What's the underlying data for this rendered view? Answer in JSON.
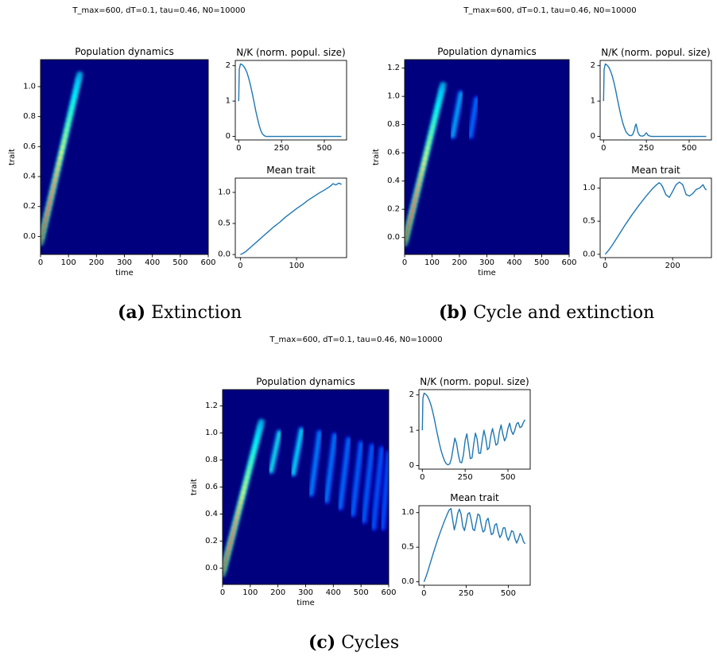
{
  "colors": {
    "line": "#1f77b4",
    "heat_background": "#00007f",
    "axis": "#000000",
    "colormap": "jet"
  },
  "panels": [
    {
      "id": "a",
      "suptitle": "T_max=600, dT=0.1, tau=0.46, N0=10000",
      "caption": {
        "label": "(a)",
        "text": "Extinction"
      }
    },
    {
      "id": "b",
      "suptitle": "T_max=600, dT=0.1, tau=0.46, N0=10000",
      "caption": {
        "label": "(b)",
        "text": "Cycle and extinction"
      }
    },
    {
      "id": "c",
      "suptitle": "T_max=600, dT=0.1, tau=0.46, N0=10000",
      "caption": {
        "label": "(c)",
        "text": "Cycles"
      }
    }
  ],
  "chart_data": [
    {
      "panel": "a",
      "type": "heatmap",
      "title": "Population dynamics",
      "xlabel": "time",
      "ylabel": "trait",
      "xlim": [
        0,
        600
      ],
      "ylim": [
        -0.12,
        1.18
      ],
      "xticks": [
        "0",
        "100",
        "200",
        "300",
        "400",
        "500",
        "600"
      ],
      "yticks": [
        "0.0",
        "0.2",
        "0.4",
        "0.6",
        "0.8",
        "1.0"
      ],
      "ridges": [
        {
          "t0": 0,
          "y0": -0.04,
          "t1": 140,
          "y1": 1.08,
          "peak": 1.0
        }
      ]
    },
    {
      "panel": "a",
      "type": "line",
      "title": "N/K (norm. popul. size)",
      "xlim": [
        -20,
        630
      ],
      "ylim": [
        -0.1,
        2.15
      ],
      "xticks": [
        "0",
        "250",
        "500"
      ],
      "yticks": [
        "0",
        "1",
        "2"
      ],
      "series": [
        {
          "x": [
            0,
            3,
            10,
            20,
            30,
            40,
            50,
            60,
            70,
            80,
            90,
            100,
            110,
            120,
            130,
            140,
            150,
            160,
            170,
            200,
            300,
            400,
            500,
            600
          ],
          "y": [
            1.0,
            1.9,
            2.05,
            2.03,
            1.98,
            1.9,
            1.78,
            1.62,
            1.42,
            1.2,
            0.96,
            0.72,
            0.5,
            0.3,
            0.15,
            0.06,
            0.02,
            0.0,
            0.0,
            0.0,
            0.0,
            0.0,
            0.0,
            0.0
          ]
        }
      ]
    },
    {
      "panel": "a",
      "type": "line",
      "title": "Mean trait",
      "xlim": [
        -9,
        189
      ],
      "ylim": [
        -0.05,
        1.23
      ],
      "xticks": [
        "0",
        "100"
      ],
      "yticks": [
        "0.0",
        "0.5",
        "1.0"
      ],
      "series": [
        {
          "x": [
            0,
            5,
            10,
            20,
            30,
            40,
            50,
            60,
            70,
            80,
            90,
            100,
            110,
            120,
            130,
            140,
            150,
            160,
            165,
            170,
            175,
            180
          ],
          "y": [
            0.0,
            0.02,
            0.05,
            0.13,
            0.21,
            0.29,
            0.37,
            0.45,
            0.52,
            0.6,
            0.67,
            0.74,
            0.8,
            0.87,
            0.93,
            0.99,
            1.04,
            1.1,
            1.14,
            1.12,
            1.15,
            1.13
          ]
        }
      ]
    },
    {
      "panel": "b",
      "type": "heatmap",
      "title": "Population dynamics",
      "xlabel": "time",
      "ylabel": "trait",
      "xlim": [
        0,
        600
      ],
      "ylim": [
        -0.12,
        1.26
      ],
      "xticks": [
        "0",
        "100",
        "200",
        "300",
        "400",
        "500",
        "600"
      ],
      "yticks": [
        "0.0",
        "0.2",
        "0.4",
        "0.6",
        "0.8",
        "1.0",
        "1.2"
      ],
      "ridges": [
        {
          "t0": 0,
          "y0": -0.04,
          "t1": 140,
          "y1": 1.08,
          "peak": 1.0
        },
        {
          "t0": 175,
          "y0": 0.72,
          "t1": 205,
          "y1": 1.02,
          "peak": 0.3
        },
        {
          "t0": 240,
          "y0": 0.72,
          "t1": 262,
          "y1": 0.98,
          "peak": 0.18
        }
      ]
    },
    {
      "panel": "b",
      "type": "line",
      "title": "N/K (norm. popul. size)",
      "xlim": [
        -20,
        630
      ],
      "ylim": [
        -0.1,
        2.15
      ],
      "xticks": [
        "0",
        "250",
        "500"
      ],
      "yticks": [
        "0",
        "1",
        "2"
      ],
      "series": [
        {
          "x": [
            0,
            3,
            10,
            20,
            30,
            40,
            50,
            60,
            70,
            80,
            90,
            100,
            110,
            120,
            130,
            140,
            150,
            160,
            170,
            180,
            185,
            190,
            195,
            200,
            210,
            220,
            230,
            240,
            245,
            250,
            255,
            260,
            270,
            280,
            300,
            400,
            500,
            600
          ],
          "y": [
            1.0,
            1.9,
            2.05,
            2.02,
            1.96,
            1.86,
            1.72,
            1.54,
            1.32,
            1.08,
            0.84,
            0.62,
            0.42,
            0.26,
            0.14,
            0.07,
            0.03,
            0.02,
            0.05,
            0.18,
            0.3,
            0.35,
            0.25,
            0.12,
            0.03,
            0.01,
            0.01,
            0.04,
            0.08,
            0.1,
            0.07,
            0.03,
            0.01,
            0.0,
            0.0,
            0.0,
            0.0,
            0.0
          ]
        }
      ]
    },
    {
      "panel": "b",
      "type": "line",
      "title": "Mean trait",
      "xlim": [
        -15,
        315
      ],
      "ylim": [
        -0.05,
        1.15
      ],
      "xticks": [
        "0",
        "200"
      ],
      "yticks": [
        "0.0",
        "0.5",
        "1.0"
      ],
      "series": [
        {
          "x": [
            0,
            10,
            20,
            40,
            60,
            80,
            100,
            120,
            140,
            150,
            160,
            165,
            170,
            180,
            190,
            200,
            210,
            220,
            230,
            240,
            250,
            260,
            270,
            280,
            290,
            295,
            300
          ],
          "y": [
            0.0,
            0.06,
            0.13,
            0.29,
            0.45,
            0.6,
            0.74,
            0.87,
            0.99,
            1.04,
            1.08,
            1.06,
            1.02,
            0.9,
            0.86,
            0.95,
            1.05,
            1.09,
            1.05,
            0.9,
            0.88,
            0.92,
            0.98,
            1.0,
            1.05,
            1.0,
            0.97
          ]
        }
      ]
    },
    {
      "panel": "c",
      "type": "heatmap",
      "title": "Population dynamics",
      "xlabel": "time",
      "ylabel": "trait",
      "xlim": [
        0,
        600
      ],
      "ylim": [
        -0.12,
        1.32
      ],
      "xticks": [
        "0",
        "100",
        "200",
        "300",
        "400",
        "500",
        "600"
      ],
      "yticks": [
        "0.0",
        "0.2",
        "0.4",
        "0.6",
        "0.8",
        "1.0",
        "1.2"
      ],
      "ridges": [
        {
          "t0": 0,
          "y0": -0.04,
          "t1": 140,
          "y1": 1.08,
          "peak": 1.0
        },
        {
          "t0": 175,
          "y0": 0.72,
          "t1": 205,
          "y1": 1.0,
          "peak": 0.45
        },
        {
          "t0": 255,
          "y0": 0.7,
          "t1": 285,
          "y1": 1.02,
          "peak": 0.4
        },
        {
          "t0": 320,
          "y0": 0.55,
          "t1": 350,
          "y1": 1.0,
          "peak": 0.22
        },
        {
          "t0": 375,
          "y0": 0.5,
          "t1": 405,
          "y1": 0.98,
          "peak": 0.2
        },
        {
          "t0": 425,
          "y0": 0.45,
          "t1": 455,
          "y1": 0.95,
          "peak": 0.18
        },
        {
          "t0": 470,
          "y0": 0.4,
          "t1": 500,
          "y1": 0.92,
          "peak": 0.16
        },
        {
          "t0": 510,
          "y0": 0.35,
          "t1": 540,
          "y1": 0.9,
          "peak": 0.15
        },
        {
          "t0": 545,
          "y0": 0.3,
          "t1": 575,
          "y1": 0.88,
          "peak": 0.13
        },
        {
          "t0": 578,
          "y0": 0.3,
          "t1": 600,
          "y1": 0.85,
          "peak": 0.12
        }
      ]
    },
    {
      "panel": "c",
      "type": "line",
      "title": "N/K (norm. popul. size)",
      "xlim": [
        -20,
        630
      ],
      "ylim": [
        -0.1,
        2.15
      ],
      "xticks": [
        "0",
        "250",
        "500"
      ],
      "yticks": [
        "0",
        "1",
        "2"
      ],
      "series": [
        {
          "x": [
            0,
            3,
            10,
            20,
            30,
            40,
            50,
            60,
            70,
            80,
            90,
            100,
            110,
            120,
            130,
            140,
            150,
            160,
            170,
            180,
            190,
            200,
            210,
            220,
            230,
            240,
            250,
            260,
            270,
            280,
            290,
            300,
            310,
            320,
            330,
            340,
            350,
            360,
            370,
            380,
            390,
            400,
            410,
            420,
            430,
            440,
            450,
            460,
            470,
            480,
            490,
            500,
            510,
            520,
            530,
            540,
            550,
            560,
            570,
            580,
            590,
            600
          ],
          "y": [
            1.0,
            1.9,
            2.05,
            2.02,
            1.96,
            1.86,
            1.72,
            1.54,
            1.32,
            1.08,
            0.84,
            0.62,
            0.42,
            0.26,
            0.13,
            0.05,
            0.02,
            0.05,
            0.2,
            0.5,
            0.78,
            0.62,
            0.32,
            0.1,
            0.08,
            0.3,
            0.72,
            0.9,
            0.55,
            0.2,
            0.22,
            0.6,
            0.92,
            0.75,
            0.35,
            0.35,
            0.72,
            1.0,
            0.78,
            0.45,
            0.5,
            0.85,
            1.05,
            0.82,
            0.58,
            0.62,
            0.95,
            1.15,
            0.9,
            0.7,
            0.8,
            1.05,
            1.2,
            0.98,
            0.88,
            1.0,
            1.18,
            1.22,
            1.08,
            1.1,
            1.22,
            1.3
          ]
        }
      ]
    },
    {
      "panel": "c",
      "type": "line",
      "title": "Mean trait",
      "xlim": [
        -30,
        630
      ],
      "ylim": [
        -0.05,
        1.1
      ],
      "xticks": [
        "0",
        "250",
        "500"
      ],
      "yticks": [
        "0.0",
        "0.5",
        "1.0"
      ],
      "series": [
        {
          "x": [
            0,
            10,
            20,
            40,
            60,
            80,
            100,
            120,
            140,
            150,
            160,
            170,
            180,
            190,
            200,
            210,
            220,
            230,
            240,
            250,
            260,
            270,
            280,
            290,
            300,
            310,
            320,
            330,
            340,
            350,
            360,
            370,
            380,
            390,
            400,
            410,
            420,
            430,
            440,
            450,
            460,
            470,
            480,
            490,
            500,
            510,
            520,
            530,
            540,
            550,
            560,
            570,
            580,
            590,
            600
          ],
          "y": [
            0.0,
            0.06,
            0.13,
            0.29,
            0.45,
            0.6,
            0.74,
            0.87,
            0.99,
            1.04,
            1.06,
            0.9,
            0.75,
            0.85,
            0.99,
            1.05,
            0.98,
            0.8,
            0.74,
            0.85,
            0.98,
            1.0,
            0.9,
            0.76,
            0.74,
            0.86,
            0.98,
            0.96,
            0.82,
            0.72,
            0.74,
            0.88,
            0.92,
            0.8,
            0.68,
            0.7,
            0.82,
            0.84,
            0.72,
            0.64,
            0.68,
            0.78,
            0.78,
            0.66,
            0.6,
            0.66,
            0.74,
            0.72,
            0.62,
            0.56,
            0.62,
            0.7,
            0.66,
            0.58,
            0.55
          ]
        }
      ]
    }
  ]
}
